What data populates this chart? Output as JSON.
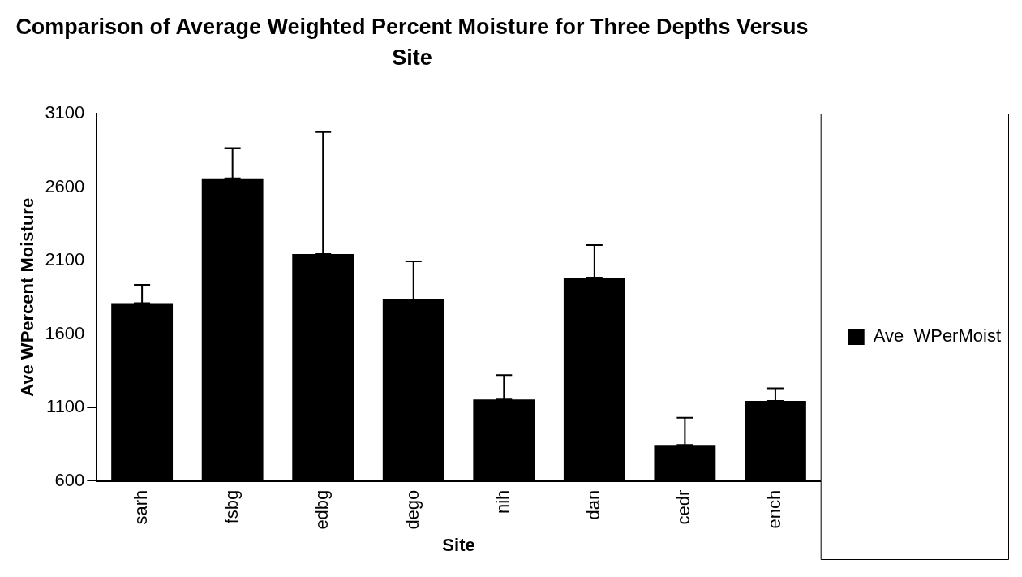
{
  "chart_data": {
    "type": "bar",
    "title": "Comparison of Average Weighted Percent Moisture for Three Depths Versus Site",
    "xlabel": "Site",
    "ylabel": "Ave WPercent Moisture",
    "categories": [
      "sarh",
      "fsbg",
      "edbg",
      "dego",
      "nih",
      "dan",
      "cedr",
      "ench"
    ],
    "series": [
      {
        "name": "Ave  WPerMoist",
        "color": "#000000",
        "values": [
          1810,
          2660,
          2145,
          1835,
          1155,
          1985,
          845,
          1145
        ],
        "errors": [
          [
            1810,
            1935
          ],
          [
            2660,
            2865
          ],
          [
            2145,
            2975
          ],
          [
            1835,
            2095
          ],
          [
            1155,
            1320
          ],
          [
            1985,
            2205
          ],
          [
            845,
            1030
          ],
          [
            1145,
            1230
          ]
        ]
      }
    ],
    "ylim": [
      600,
      3100
    ],
    "yticks": [
      600,
      1100,
      1600,
      2100,
      2600,
      3100
    ],
    "legend": "right"
  }
}
